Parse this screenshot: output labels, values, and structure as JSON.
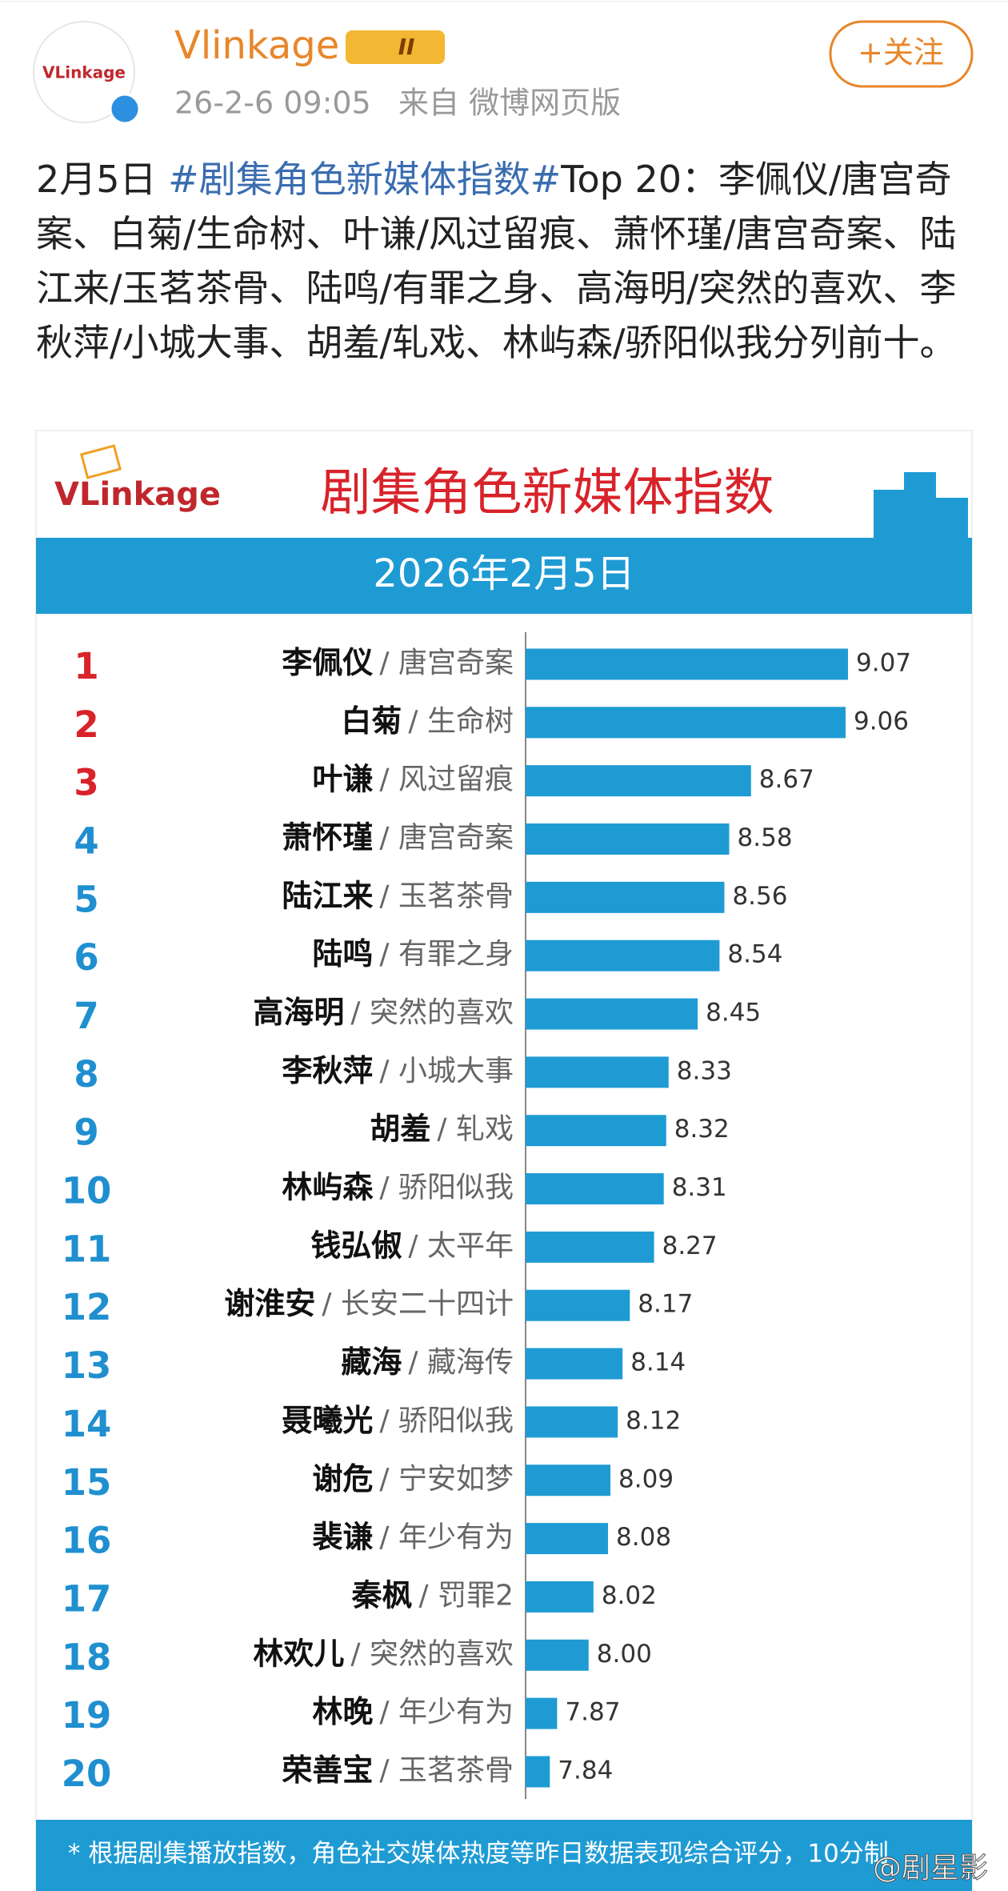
{
  "post": {
    "avatar_text": "VLinkage",
    "author": "Vlinkage",
    "badge": "II",
    "time": "26-2-6 09:05",
    "source": "来自 微博网页版",
    "follow": "+关注",
    "text_before": "2月5日 ",
    "hashtag": "#剧集角色新媒体指数#",
    "text_after": "Top 20：李佩仪/唐宫奇案、白菊/生命树、叶谦/风过留痕、萧怀瑾/唐宫奇案、陆江来/玉茗茶骨、陆鸣/有罪之身、高海明/突然的喜欢、李秋萍/小城大事、胡羞/轧戏、林屿森/骄阳似我分列前十。"
  },
  "chart_data": {
    "type": "bar",
    "orientation": "horizontal",
    "logo": "VLinkage",
    "title": "剧集角色新媒体指数",
    "subtitle": "2026年2月5日",
    "ranks": [
      1,
      2,
      3,
      4,
      5,
      6,
      7,
      8,
      9,
      10,
      11,
      12,
      13,
      14,
      15,
      16,
      17,
      18,
      19,
      20
    ],
    "categories": [
      "李佩仪",
      "白菊",
      "叶谦",
      "萧怀瑾",
      "陆江来",
      "陆鸣",
      "高海明",
      "李秋萍",
      "胡羞",
      "林屿森",
      "钱弘俶",
      "谢淮安",
      "藏海",
      "聂曦光",
      "谢危",
      "裴谦",
      "秦枫",
      "林欢儿",
      "林晚",
      "荣善宝"
    ],
    "shows": [
      "/ 唐宫奇案",
      "/ 生命树",
      "/ 风过留痕",
      "/ 唐宫奇案",
      "/ 玉茗茶骨",
      "/ 有罪之身",
      "/ 突然的喜欢",
      "/ 小城大事",
      "/ 轧戏",
      "/ 骄阳似我",
      "/ 太平年",
      "/ 长安二十四计",
      "/ 藏海传",
      "/ 骄阳似我",
      "/ 宁安如梦",
      "/ 年少有为",
      "/ 罚罪2",
      "/ 突然的喜欢",
      "/ 年少有为",
      "/ 玉茗茶骨"
    ],
    "values": [
      9.07,
      9.06,
      8.67,
      8.58,
      8.56,
      8.54,
      8.45,
      8.33,
      8.32,
      8.31,
      8.27,
      8.17,
      8.14,
      8.12,
      8.09,
      8.08,
      8.02,
      8.0,
      7.87,
      7.84
    ],
    "value_labels": [
      "9.07",
      "9.06",
      "8.67",
      "8.58",
      "8.56",
      "8.54",
      "8.45",
      "8.33",
      "8.32",
      "8.31",
      "8.27",
      "8.17",
      "8.14",
      "8.12",
      "8.09",
      "8.08",
      "8.02",
      "8.00",
      "7.87",
      "7.84"
    ],
    "xlim": [
      7.74,
      9.07
    ],
    "color": "#1f9bd4",
    "top_rank_color": "#d8232a",
    "rank_color": "#1f8fd0",
    "footnote": "* 根据剧集播放指数，角色社交媒体热度等昨日数据表现综合评分，10分制",
    "watermark": "@剧星影"
  }
}
